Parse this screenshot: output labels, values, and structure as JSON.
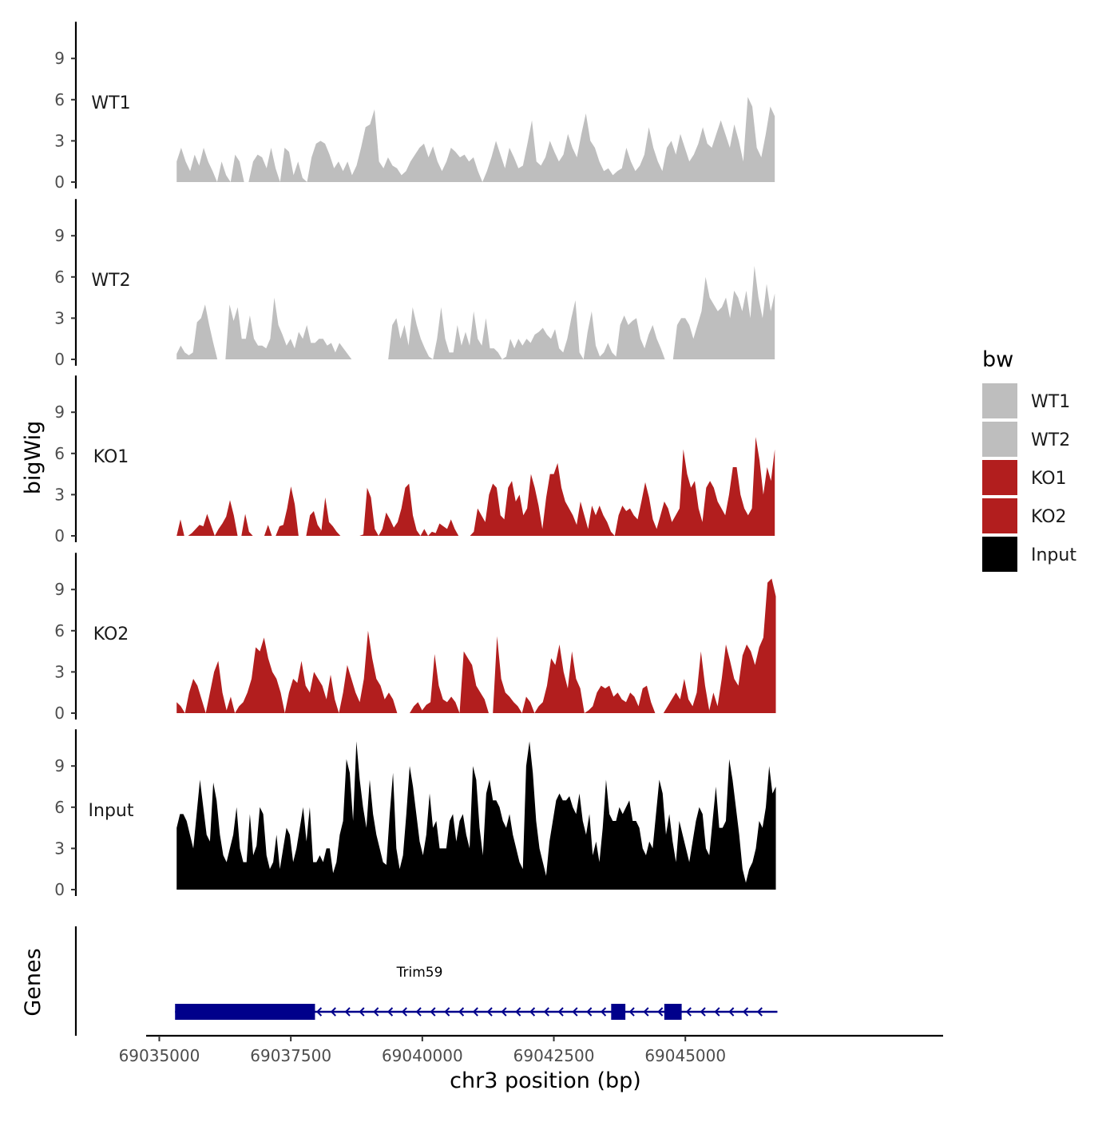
{
  "chart_data": {
    "type": "area",
    "title": "",
    "xlabel": "chr3 position (bp)",
    "ylabel_tracks": "bigWig",
    "ylabel_genes": "Genes",
    "xlim": [
      69034750,
      69049900
    ],
    "x_ticks": [
      69035000,
      69037500,
      69040000,
      69042500,
      69045000
    ],
    "x_tick_labels": [
      "69035000",
      "69037500",
      "69040000",
      "69042500",
      "69045000"
    ],
    "ylim": [
      0,
      11.5
    ],
    "y_ticks": [
      0,
      3,
      6,
      9
    ],
    "y_tick_labels": [
      "0",
      "3",
      "6",
      "9"
    ],
    "legend": {
      "title": "bw",
      "position": "right",
      "entries": [
        {
          "label": "WT1",
          "color": "#bebebe"
        },
        {
          "label": "WT2",
          "color": "#bebebe"
        },
        {
          "label": "KO1",
          "color": "#b21e1e"
        },
        {
          "label": "KO2",
          "color": "#b21e1e"
        },
        {
          "label": "Input",
          "color": "#000000"
        }
      ]
    },
    "series": [
      {
        "name": "WT1",
        "color": "#bebebe",
        "x_start": 69035330,
        "x_end": 69046700,
        "values": [
          1.5,
          2.5,
          1.5,
          0.8,
          2.0,
          1.2,
          2.5,
          1.5,
          0.8,
          0,
          1.5,
          0.5,
          0,
          2.0,
          1.5,
          0,
          0,
          1.5,
          2.0,
          1.8,
          1.0,
          2.5,
          1.0,
          0,
          2.5,
          2.2,
          0.5,
          1.5,
          0.3,
          0,
          1.8,
          2.8,
          3.0,
          2.8,
          2.0,
          1.0,
          1.5,
          0.8,
          1.5,
          0.5,
          1.2,
          2.5,
          4.0,
          4.2,
          5.3,
          1.5,
          1.0,
          1.8,
          1.2,
          1.0,
          0.5,
          0.8,
          1.5,
          2.0,
          2.5,
          2.8,
          1.8,
          2.6,
          1.5,
          0.8,
          1.5,
          2.5,
          2.2,
          1.8,
          2.0,
          1.5,
          1.8,
          0.8,
          0,
          0.8,
          1.8,
          3.0,
          2.0,
          1.0,
          2.5,
          1.8,
          1.0,
          1.2,
          2.8,
          4.5,
          1.5,
          1.2,
          1.8,
          3.0,
          2.2,
          1.5,
          2.0,
          3.5,
          2.5,
          1.8,
          3.5,
          5.0,
          3.0,
          2.5,
          1.5,
          0.8,
          1.0,
          0.5,
          0.8,
          1.0,
          2.5,
          1.5,
          0.8,
          1.2,
          2.0,
          4.0,
          2.5,
          1.5,
          0.8,
          2.5,
          3.0,
          2.0,
          3.5,
          2.5,
          1.5,
          2.0,
          2.8,
          4.0,
          2.8,
          2.5,
          3.5,
          4.5,
          3.5,
          2.5,
          4.2,
          3.0,
          1.5,
          6.2,
          5.5,
          2.5,
          1.8,
          3.5,
          5.5,
          4.8
        ]
      },
      {
        "name": "WT2",
        "color": "#bebebe",
        "x_start": 69035330,
        "x_end": 69046700,
        "values": [
          0.4,
          1.0,
          0.5,
          0.3,
          0.5,
          2.7,
          3.0,
          4.0,
          2.5,
          1.2,
          0,
          0,
          0,
          4.0,
          2.8,
          3.8,
          1.5,
          1.5,
          3.2,
          1.5,
          1.0,
          1.0,
          0.8,
          1.5,
          4.5,
          2.5,
          1.8,
          1.0,
          1.5,
          0.8,
          2.0,
          1.5,
          2.5,
          1.2,
          1.2,
          1.5,
          1.5,
          1.0,
          1.2,
          0.5,
          1.2,
          0.8,
          0.4,
          0,
          0,
          0,
          0,
          0,
          0,
          0,
          0,
          0,
          0,
          2.5,
          3.0,
          1.5,
          2.5,
          1.0,
          3.8,
          2.5,
          1.5,
          0.8,
          0.2,
          0,
          1.5,
          3.8,
          1.5,
          0.5,
          0.5,
          2.5,
          1.0,
          2.0,
          1.0,
          3.5,
          1.5,
          1.0,
          3.0,
          0.8,
          0.8,
          0.5,
          0,
          0.2,
          1.5,
          0.8,
          1.5,
          1.0,
          1.5,
          1.2,
          1.8,
          2.0,
          2.3,
          1.8,
          1.5,
          2.2,
          0.8,
          0.5,
          1.5,
          3.0,
          4.3,
          0.5,
          0,
          2.0,
          3.5,
          1.0,
          0.2,
          0.5,
          1.2,
          0.5,
          0.2,
          2.5,
          3.2,
          2.5,
          2.8,
          3.0,
          1.5,
          0.8,
          1.8,
          2.5,
          1.5,
          0.8,
          0,
          0,
          0,
          2.5,
          3.0,
          3.0,
          2.5,
          1.5,
          2.5,
          3.5,
          6.0,
          4.5,
          4.0,
          3.5,
          3.8,
          4.5,
          3.0,
          5.0,
          4.5,
          3.5,
          5.0,
          3.0,
          6.8,
          4.5,
          3.0,
          5.5,
          3.5,
          4.8
        ]
      },
      {
        "name": "KO1",
        "color": "#b21e1e",
        "x_start": 69035330,
        "x_end": 69046700,
        "values": [
          0,
          1.2,
          0,
          0,
          0.2,
          0.5,
          0.8,
          0.7,
          1.6,
          0.8,
          0,
          0.5,
          0.9,
          1.4,
          2.6,
          1.5,
          0,
          0,
          1.6,
          0.3,
          0,
          0,
          0,
          0,
          0.8,
          0,
          0,
          0.7,
          0.8,
          2.0,
          3.6,
          2.3,
          0,
          0,
          0,
          1.5,
          1.8,
          0.8,
          0.4,
          2.8,
          1.0,
          0.7,
          0.3,
          0,
          0,
          0,
          0,
          0,
          0,
          0.1,
          3.5,
          2.8,
          0.5,
          0,
          0.5,
          1.7,
          1.2,
          0.6,
          1.0,
          2.0,
          3.5,
          3.8,
          1.5,
          0.4,
          0,
          0.5,
          0,
          0.3,
          0.2,
          0.9,
          0.7,
          0.5,
          1.2,
          0.5,
          0,
          0,
          0,
          0,
          0.3,
          2.0,
          1.5,
          1.0,
          3.0,
          3.8,
          3.5,
          1.5,
          1.2,
          3.5,
          4.0,
          2.5,
          3.0,
          1.5,
          2.0,
          4.5,
          3.5,
          2.2,
          0.5,
          2.8,
          4.5,
          4.5,
          5.3,
          3.5,
          2.5,
          2.0,
          1.5,
          0.8,
          2.5,
          1.5,
          0.5,
          2.2,
          1.5,
          2.2,
          1.5,
          1.0,
          0.3,
          0,
          1.5,
          2.2,
          1.8,
          2.0,
          1.5,
          1.2,
          2.5,
          3.9,
          2.8,
          1.2,
          0.5,
          1.5,
          2.5,
          2.0,
          1.0,
          1.5,
          2.0,
          6.3,
          4.5,
          3.5,
          4.0,
          2.0,
          1.0,
          3.5,
          4.0,
          3.5,
          2.5,
          2.0,
          1.5,
          3.0,
          5.0,
          5.0,
          3.0,
          2.0,
          1.5,
          2.0,
          7.2,
          5.5,
          3.0,
          5.0,
          4.0,
          6.3
        ]
      },
      {
        "name": "KO2",
        "color": "#b21e1e",
        "x_start": 69035330,
        "x_end": 69046720,
        "values": [
          0.8,
          0.5,
          0,
          1.5,
          2.5,
          2.0,
          1.0,
          0,
          1.5,
          3.0,
          3.8,
          1.5,
          0.2,
          1.2,
          0,
          0.5,
          0.8,
          1.5,
          2.5,
          4.8,
          4.5,
          5.5,
          4.0,
          3.0,
          2.5,
          1.5,
          0,
          1.5,
          2.5,
          2.2,
          3.8,
          2.0,
          1.5,
          3.0,
          2.5,
          2.0,
          1.0,
          2.8,
          1.0,
          0,
          1.5,
          3.5,
          2.5,
          1.5,
          0.8,
          2.5,
          6.0,
          4.0,
          2.5,
          2.0,
          1.0,
          1.5,
          1.0,
          0,
          0,
          0,
          0,
          0.5,
          0.8,
          0.2,
          0.6,
          0.8,
          4.3,
          2.0,
          1.0,
          0.8,
          1.2,
          0.8,
          0,
          4.5,
          4.0,
          3.5,
          2.0,
          1.5,
          1.0,
          0,
          0,
          5.6,
          2.5,
          1.5,
          1.2,
          0.8,
          0.5,
          0,
          1.2,
          0.8,
          0,
          0.5,
          0.8,
          2.0,
          4.0,
          3.5,
          5.0,
          3.0,
          1.8,
          4.5,
          2.5,
          1.8,
          0,
          0.2,
          0.5,
          1.5,
          2.0,
          1.8,
          2.0,
          1.2,
          1.5,
          1.0,
          0.8,
          1.5,
          1.2,
          0.5,
          1.8,
          2.0,
          0.8,
          0,
          0,
          0,
          0.5,
          1.0,
          1.5,
          1.0,
          2.5,
          1.0,
          0.5,
          1.5,
          4.5,
          2.0,
          0.2,
          1.5,
          0.5,
          2.5,
          5.0,
          3.8,
          2.5,
          2.0,
          4.2,
          5.0,
          4.5,
          3.5,
          4.8,
          5.5,
          9.5,
          9.8,
          8.5
        ]
      },
      {
        "name": "Input",
        "color": "#000000",
        "x_start": 69035330,
        "x_end": 69046720,
        "values": [
          4.5,
          5.5,
          5.5,
          5.0,
          4.0,
          3.0,
          5.5,
          8.0,
          6.0,
          4.0,
          3.5,
          7.8,
          6.5,
          4.0,
          2.5,
          2.0,
          3.0,
          4.0,
          6.0,
          3.0,
          2.0,
          2.0,
          5.5,
          2.5,
          3.2,
          6.0,
          5.5,
          2.5,
          1.5,
          2.0,
          4.0,
          1.5,
          3.0,
          4.5,
          4.0,
          2.0,
          3.0,
          4.5,
          6.0,
          3.5,
          6.0,
          2.0,
          2.0,
          2.5,
          2.0,
          3.0,
          3.0,
          1.2,
          2.0,
          4.0,
          5.0,
          9.5,
          8.5,
          5.0,
          10.8,
          8.0,
          6.0,
          4.5,
          8.0,
          5.5,
          4.0,
          3.0,
          2.0,
          1.8,
          5.5,
          8.5,
          3.0,
          1.5,
          2.5,
          5.5,
          9.0,
          7.5,
          5.5,
          3.5,
          2.5,
          4.0,
          7.0,
          4.5,
          5.0,
          3.0,
          3.0,
          3.0,
          5.0,
          5.5,
          3.5,
          5.0,
          5.5,
          4.0,
          3.0,
          9.0,
          8.0,
          4.5,
          2.5,
          7.0,
          8.0,
          6.5,
          6.5,
          6.0,
          5.0,
          4.5,
          5.5,
          4.0,
          3.0,
          2.0,
          1.5,
          9.0,
          10.8,
          8.5,
          5.0,
          3.0,
          2.0,
          1.0,
          3.5,
          5.0,
          6.5,
          7.0,
          6.5,
          6.5,
          6.8,
          6.0,
          5.5,
          7.0,
          5.0,
          4.0,
          5.5,
          2.5,
          3.5,
          2.0,
          4.5,
          8.0,
          5.5,
          5.0,
          5.0,
          6.0,
          5.5,
          6.0,
          6.5,
          5.0,
          5.0,
          4.5,
          3.0,
          2.5,
          3.5,
          3.0,
          5.5,
          8.0,
          7.0,
          4.0,
          5.5,
          3.5,
          2.0,
          5.0,
          4.0,
          3.0,
          2.0,
          3.5,
          5.0,
          6.0,
          5.5,
          3.0,
          2.5,
          5.0,
          7.5,
          4.5,
          4.5,
          5.0,
          9.5,
          8.0,
          6.0,
          4.0,
          1.5,
          0.5,
          1.5,
          2.0,
          3.0,
          5.0,
          4.5,
          6.0,
          9.0,
          7.0,
          7.5
        ]
      }
    ],
    "track_labels": [
      "WT1",
      "WT2",
      "KO1",
      "KO2",
      "Input"
    ],
    "genes": [
      {
        "name": "Trim59",
        "strand": "-",
        "start": 69035300,
        "end": 69046750,
        "exons": [
          [
            69035300,
            69037960
          ],
          [
            69043590,
            69043860
          ],
          [
            69044600,
            69044930
          ]
        ]
      }
    ]
  }
}
